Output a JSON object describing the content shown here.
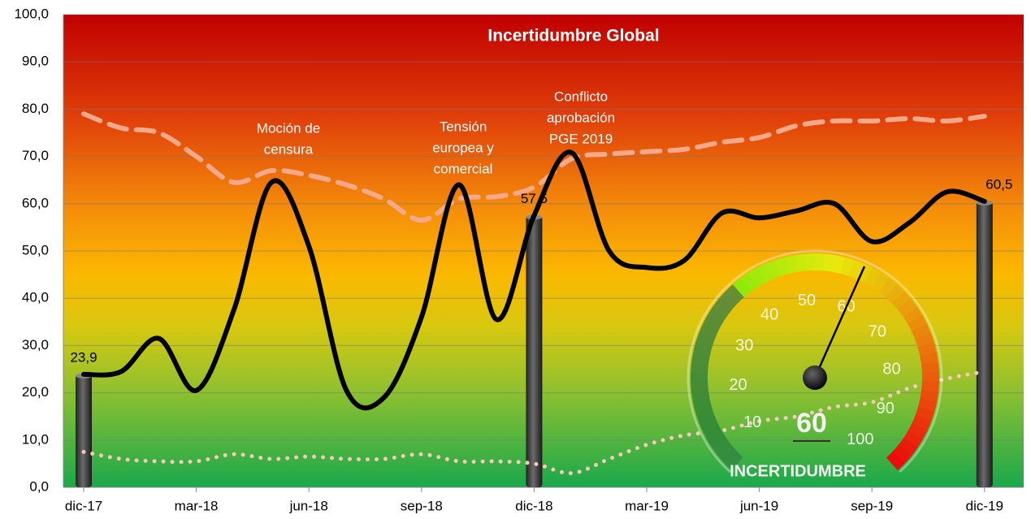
{
  "chart_data": {
    "type": "line",
    "title": "Incertidumbre Global",
    "categories": [
      "dic-17",
      null,
      null,
      "mar-18",
      null,
      null,
      "jun-18",
      null,
      null,
      "sep-18",
      null,
      null,
      "dic-18",
      null,
      null,
      "mar-19",
      null,
      null,
      "jun-19",
      null,
      null,
      "sep-19",
      null,
      null,
      "dic-19"
    ],
    "ylim": [
      0,
      100
    ],
    "yticks": [
      {
        "value": 0,
        "label": "0,0"
      },
      {
        "value": 10,
        "label": "10,0"
      },
      {
        "value": 20,
        "label": "20,0"
      },
      {
        "value": 30,
        "label": "30,0"
      },
      {
        "value": 40,
        "label": "40,0"
      },
      {
        "value": 50,
        "label": "50,0"
      },
      {
        "value": 60,
        "label": "60,0"
      },
      {
        "value": 70,
        "label": "70,0"
      },
      {
        "value": 80,
        "label": "80,0"
      },
      {
        "value": 90,
        "label": "90,0"
      },
      {
        "value": 100,
        "label": "100,0"
      }
    ],
    "grid": true,
    "series": [
      {
        "color": "#000000",
        "style": "solid",
        "values": [
          23.9,
          24.5,
          31.5,
          20.5,
          37.5,
          64.5,
          51,
          20.5,
          19,
          36,
          64,
          35.5,
          57.5,
          70.8,
          50,
          46.5,
          48,
          58,
          57,
          58.5,
          60,
          52,
          56,
          62.5,
          60.5
        ]
      },
      {
        "color": "#f5a98a",
        "style": "dashed",
        "values": [
          79,
          76,
          75,
          70,
          64.5,
          67,
          66,
          64,
          61,
          56.5,
          61,
          61.5,
          63.5,
          69.5,
          70.5,
          71,
          71.5,
          73,
          74,
          76.5,
          77.5,
          77.5,
          78,
          77.5,
          78.5
        ]
      },
      {
        "color": "#f6c9b8",
        "style": "dotted",
        "values": [
          7.5,
          6,
          5.5,
          5.5,
          7,
          6,
          6.5,
          6,
          6,
          7,
          5.5,
          5.5,
          5,
          3,
          6,
          9,
          11,
          12,
          14,
          15,
          17,
          18,
          21,
          23,
          24.5
        ]
      }
    ],
    "bars": {
      "color": "#4a4a4a",
      "values": [
        23.9,
        null,
        null,
        null,
        null,
        null,
        null,
        null,
        null,
        null,
        null,
        null,
        57.5,
        null,
        null,
        null,
        null,
        null,
        null,
        null,
        null,
        null,
        null,
        null,
        60.5
      ],
      "value_labels": [
        "23,9",
        null,
        null,
        null,
        null,
        null,
        null,
        null,
        null,
        null,
        null,
        null,
        "57,5",
        null,
        null,
        null,
        null,
        null,
        null,
        null,
        null,
        null,
        null,
        null,
        "60,5"
      ]
    },
    "annotations": [
      {
        "lines": [
          "Moción de",
          "censura"
        ]
      },
      {
        "lines": [
          "Tensión",
          "europea y",
          "comercial"
        ]
      },
      {
        "lines": [
          "Conflicto",
          "aprobación",
          "PGE 2019"
        ]
      }
    ]
  },
  "gauge": {
    "ticks": [
      10,
      20,
      30,
      40,
      50,
      60,
      70,
      80,
      90,
      100
    ],
    "value": 60,
    "label": "INCERTIDUMBRE"
  }
}
